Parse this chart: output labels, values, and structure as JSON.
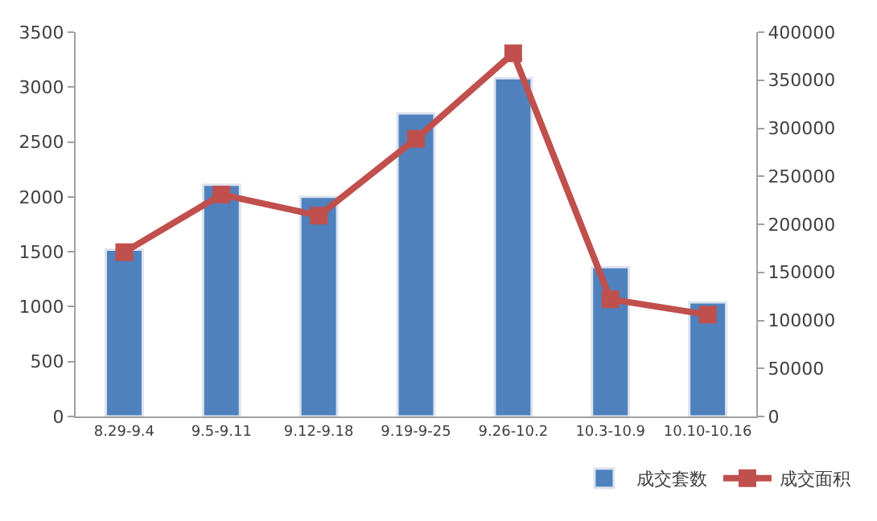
{
  "chart_data": {
    "type": "bar",
    "categories": [
      "8.29-9.4",
      "9.5-9.11",
      "9.12-9.18",
      "9.19-9-25",
      "9.26-10.2",
      "10.3-10.9",
      "10.10-10.16"
    ],
    "series": [
      {
        "name": "成交套数",
        "color": "#4f81bd",
        "values": [
          1520,
          2110,
          2000,
          2760,
          3080,
          1360,
          1040
        ]
      },
      {
        "name": "成交面积",
        "type": "line",
        "axis": "y2",
        "color": "#c0504d",
        "marker": "square",
        "values": [
          171000,
          231000,
          209000,
          289000,
          378000,
          122000,
          106000
        ]
      }
    ],
    "ylim": [
      0,
      3500
    ],
    "yticks": [
      0,
      500,
      1000,
      1500,
      2000,
      2500,
      3000,
      3500
    ],
    "y2lim": [
      0,
      400000
    ],
    "y2ticks": [
      0,
      50000,
      100000,
      150000,
      200000,
      250000,
      300000,
      350000,
      400000
    ],
    "legend": "bottom right"
  }
}
